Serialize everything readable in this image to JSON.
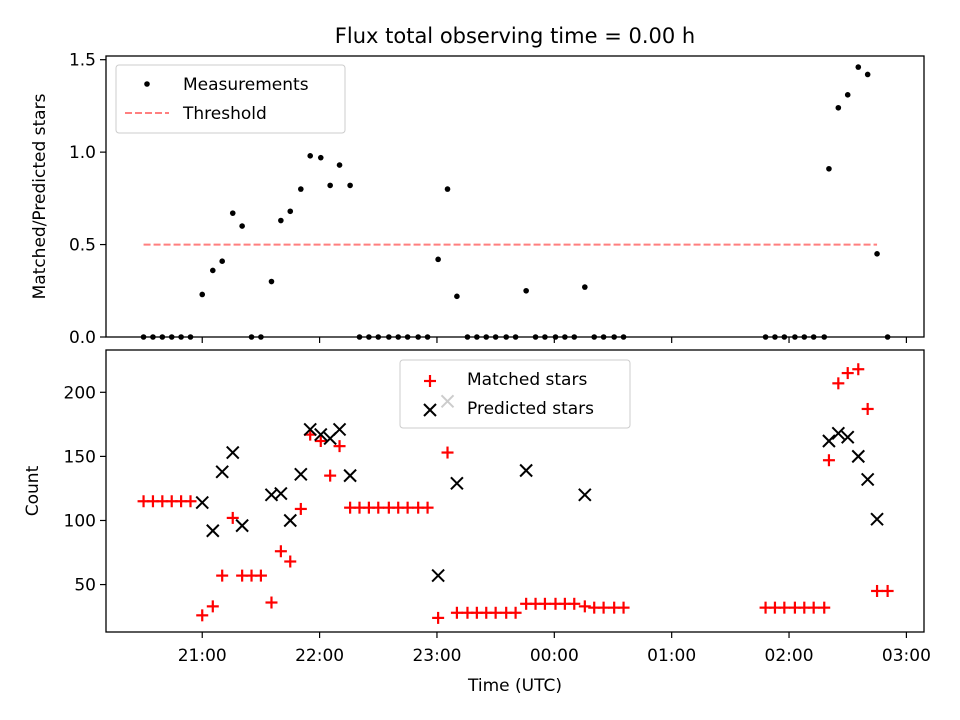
{
  "chart_data": [
    {
      "type": "scatter",
      "title": "Flux total observing time = 0.00 h",
      "ylabel": "Matched/Predicted stars",
      "xlabel": "",
      "xlim": [
        20.18,
        27.15
      ],
      "ylim": [
        0,
        1.52
      ],
      "yticks": [
        0,
        0.5,
        1.0,
        1.5
      ],
      "ytick_labels": [
        "0.0",
        "0.5",
        "1.0",
        "1.5"
      ],
      "grid": false,
      "legend_position": "upper-left",
      "series": [
        {
          "name": "Measurements",
          "color": "#000000",
          "marker": "dot",
          "x": [
            20.5,
            20.58,
            20.66,
            20.74,
            20.82,
            20.9,
            21.0,
            21.09,
            21.17,
            21.26,
            21.34,
            21.42,
            21.5,
            21.59,
            21.67,
            21.75,
            21.84,
            21.92,
            22.01,
            22.09,
            22.17,
            22.26,
            22.34,
            22.42,
            22.5,
            22.59,
            22.67,
            22.75,
            22.84,
            22.92,
            23.01,
            23.09,
            23.17,
            23.26,
            23.34,
            23.42,
            23.5,
            23.59,
            23.67,
            23.76,
            23.84,
            23.92,
            24.01,
            24.09,
            24.17,
            24.26,
            24.34,
            24.42,
            24.51,
            24.59,
            25.8,
            25.88,
            25.96,
            26.05,
            26.13,
            26.21,
            26.3,
            26.34,
            26.42,
            26.5,
            26.59,
            26.67,
            26.75,
            26.84
          ],
          "y": [
            0,
            0,
            0,
            0,
            0,
            0,
            0.23,
            0.36,
            0.41,
            0.67,
            0.6,
            0,
            0,
            0.3,
            0.63,
            0.68,
            0.8,
            0.98,
            0.97,
            0.82,
            0.93,
            0.82,
            0,
            0,
            0,
            0,
            0,
            0,
            0,
            0,
            0.42,
            0.8,
            0.22,
            0,
            0,
            0,
            0,
            0,
            0,
            0.25,
            0,
            0,
            0,
            0,
            0,
            0.27,
            0,
            0,
            0,
            0,
            0,
            0,
            0,
            0,
            0,
            0,
            0,
            0.91,
            1.24,
            1.31,
            1.46,
            1.42,
            0.45,
            0
          ]
        },
        {
          "name": "Threshold",
          "color": "#ff7f7f",
          "style": "dashed",
          "x": [
            20.5,
            26.75
          ],
          "y": [
            0.5,
            0.5
          ]
        }
      ]
    },
    {
      "type": "scatter",
      "title": "",
      "ylabel": "Count",
      "xlabel": "Time (UTC)",
      "xlim": [
        20.18,
        27.15
      ],
      "ylim": [
        13,
        233
      ],
      "yticks": [
        50,
        100,
        150,
        200
      ],
      "ytick_labels": [
        "50",
        "100",
        "150",
        "200"
      ],
      "xticks": [
        21,
        22,
        23,
        24,
        25,
        26,
        27
      ],
      "xtick_labels": [
        "21:00",
        "22:00",
        "23:00",
        "00:00",
        "01:00",
        "02:00",
        "03:00"
      ],
      "grid": false,
      "legend_position": "upper-center",
      "series": [
        {
          "name": "Matched stars",
          "color": "#ff0000",
          "marker": "plus",
          "x": [
            20.5,
            20.58,
            20.66,
            20.74,
            20.82,
            20.9,
            21.0,
            21.09,
            21.17,
            21.26,
            21.34,
            21.42,
            21.5,
            21.59,
            21.67,
            21.75,
            21.84,
            21.92,
            22.01,
            22.09,
            22.17,
            22.26,
            22.34,
            22.42,
            22.5,
            22.59,
            22.67,
            22.75,
            22.84,
            22.92,
            23.01,
            23.09,
            23.17,
            23.26,
            23.34,
            23.42,
            23.5,
            23.59,
            23.67,
            23.76,
            23.84,
            23.92,
            24.01,
            24.09,
            24.17,
            24.26,
            24.34,
            24.42,
            24.51,
            24.59,
            25.8,
            25.88,
            25.96,
            26.05,
            26.13,
            26.21,
            26.3,
            26.34,
            26.42,
            26.5,
            26.59,
            26.67,
            26.75,
            26.84
          ],
          "y": [
            115,
            115,
            115,
            115,
            115,
            115,
            26,
            33,
            57,
            102,
            57,
            57,
            57,
            36,
            76,
            68,
            109,
            167,
            162,
            135,
            158,
            110,
            110,
            110,
            110,
            110,
            110,
            110,
            110,
            110,
            24,
            153,
            28,
            28,
            28,
            28,
            28,
            28,
            28,
            35,
            35,
            35,
            35,
            35,
            35,
            33,
            32,
            32,
            32,
            32,
            32,
            32,
            32,
            32,
            32,
            32,
            32,
            147,
            207,
            215,
            218,
            187,
            45,
            45
          ]
        },
        {
          "name": "Predicted stars",
          "color": "#000000",
          "marker": "x",
          "x": [
            21.0,
            21.09,
            21.17,
            21.26,
            21.34,
            21.59,
            21.67,
            21.75,
            21.84,
            21.92,
            22.01,
            22.09,
            22.17,
            22.26,
            23.01,
            23.09,
            23.17,
            23.76,
            24.26,
            26.34,
            26.42,
            26.5,
            26.59,
            26.67,
            26.75
          ],
          "y": [
            114,
            92,
            138,
            153,
            96,
            120,
            121,
            100,
            136,
            171,
            167,
            164,
            171,
            135,
            57,
            193,
            129,
            139,
            120,
            162,
            168,
            165,
            150,
            132,
            101
          ]
        }
      ]
    }
  ]
}
